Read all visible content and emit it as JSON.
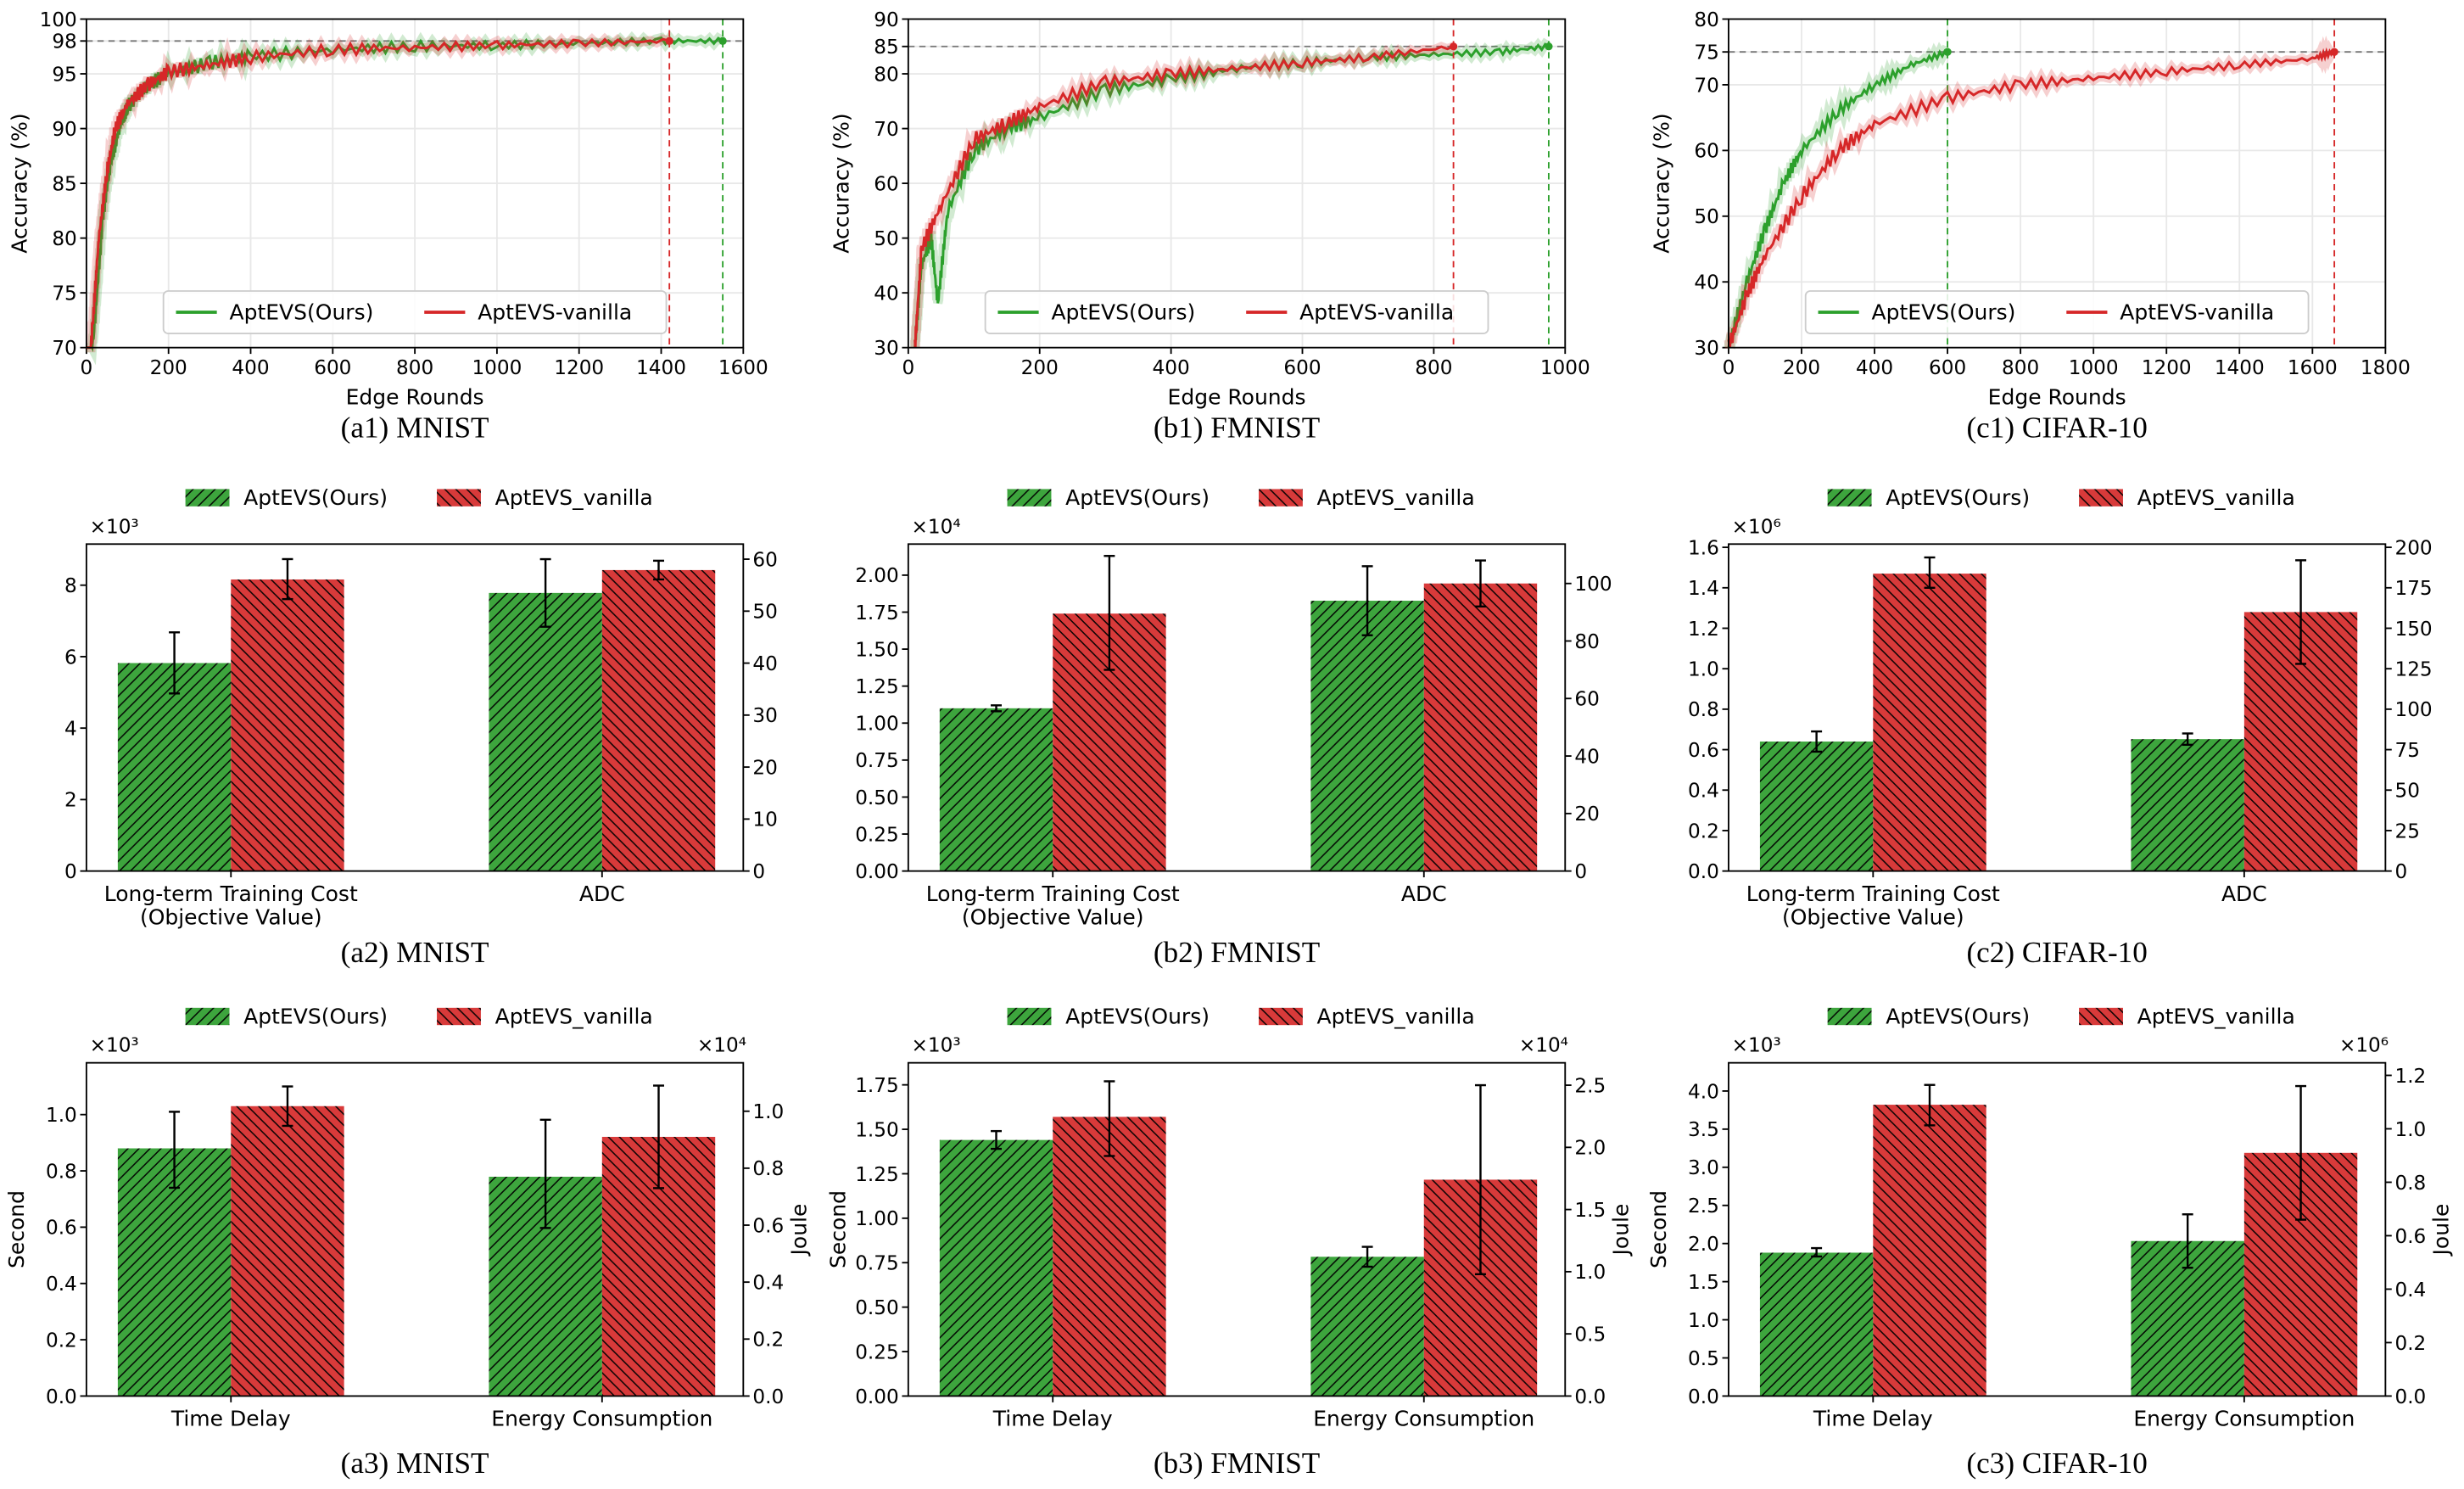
{
  "chart_data": [
    {
      "type": "line",
      "caption": "(a1) MNIST",
      "xlabel": "Edge Rounds",
      "ylabel": "Accuracy (%)",
      "xlim": [
        0,
        1600
      ],
      "ylim": [
        70,
        100
      ],
      "xticks": [
        "0",
        "200",
        "400",
        "600",
        "800",
        "1000",
        "1200",
        "1400",
        "1600"
      ],
      "yticks": [
        "70",
        "75",
        "80",
        "85",
        "90",
        "95",
        "98",
        "100"
      ],
      "target_accuracy": 98,
      "grid": true,
      "legend": "lower center",
      "series": [
        {
          "name": "AptEVS(Ours)",
          "color": "#2ca02c",
          "end_round": 1550,
          "x": [
            0,
            20,
            40,
            60,
            80,
            100,
            150,
            200,
            300,
            400,
            600,
            800,
            1000,
            1200,
            1400,
            1550
          ],
          "y": [
            65,
            72,
            82,
            87,
            90,
            92,
            94,
            95,
            96,
            96.6,
            97.2,
            97.5,
            97.6,
            97.8,
            98,
            98
          ]
        },
        {
          "name": "AptEVS-vanilla",
          "color": "#d62728",
          "end_round": 1420,
          "x": [
            0,
            15,
            30,
            50,
            70,
            100,
            150,
            200,
            300,
            400,
            600,
            800,
            1000,
            1200,
            1420
          ],
          "y": [
            65,
            72,
            80,
            86,
            90,
            92.3,
            94,
            95.2,
            95.8,
            96.5,
            97.2,
            97.4,
            97.6,
            97.8,
            98
          ]
        }
      ]
    },
    {
      "type": "line",
      "caption": "(b1) FMNIST",
      "xlabel": "Edge Rounds",
      "ylabel": "Accuracy (%)",
      "xlim": [
        0,
        1000
      ],
      "ylim": [
        30,
        90
      ],
      "xticks": [
        "0",
        "200",
        "400",
        "600",
        "800",
        "1000"
      ],
      "yticks": [
        "30",
        "40",
        "50",
        "60",
        "70",
        "80",
        "85",
        "90"
      ],
      "target_accuracy": 85,
      "grid": true,
      "legend": "lower center",
      "series": [
        {
          "name": "AptEVS(Ours)",
          "color": "#2ca02c",
          "end_round": 975,
          "x": [
            10,
            20,
            35,
            45,
            60,
            100,
            150,
            200,
            300,
            400,
            500,
            600,
            700,
            800,
            900,
            975
          ],
          "y": [
            30,
            45,
            50,
            38,
            55,
            66,
            70,
            72,
            77,
            79,
            81,
            82,
            83,
            83.5,
            84,
            85
          ]
        },
        {
          "name": "AptEVS-vanilla",
          "color": "#d62728",
          "end_round": 830,
          "x": [
            10,
            20,
            50,
            100,
            150,
            200,
            300,
            400,
            500,
            600,
            700,
            830
          ],
          "y": [
            30,
            48,
            56,
            68,
            71,
            74,
            78.5,
            80,
            81,
            82,
            83,
            85
          ]
        }
      ]
    },
    {
      "type": "line",
      "caption": "(c1) CIFAR-10",
      "xlabel": "Edge Rounds",
      "ylabel": "Accuracy (%)",
      "xlim": [
        0,
        1800
      ],
      "ylim": [
        30,
        80
      ],
      "xticks": [
        "0",
        "200",
        "400",
        "600",
        "800",
        "1000",
        "1200",
        "1400",
        "1600",
        "1800"
      ],
      "yticks": [
        "30",
        "40",
        "50",
        "60",
        "70",
        "75",
        "80"
      ],
      "target_accuracy": 75,
      "grid": true,
      "legend": "lower center",
      "series": [
        {
          "name": "AptEVS(Ours)",
          "color": "#2ca02c",
          "end_round": 600,
          "x": [
            0,
            50,
            100,
            150,
            200,
            300,
            400,
            500,
            600
          ],
          "y": [
            30,
            40,
            48,
            55,
            60,
            66,
            70,
            73,
            75
          ]
        },
        {
          "name": "AptEVS-vanilla",
          "color": "#d62728",
          "end_round": 1660,
          "x": [
            0,
            50,
            100,
            200,
            300,
            400,
            600,
            800,
            1000,
            1200,
            1400,
            1600,
            1660
          ],
          "y": [
            30,
            38,
            44,
            53,
            60,
            64,
            68,
            70,
            71,
            72,
            73,
            74,
            75
          ]
        }
      ]
    },
    {
      "type": "bar",
      "caption": "(a2) MNIST",
      "categories": [
        [
          "Long-term Training Cost",
          "(Objective Value)"
        ],
        [
          "ADC"
        ]
      ],
      "axis_per_category": [
        "left",
        "right"
      ],
      "left_axis": {
        "label": "",
        "multiplier": "×10³",
        "ylim": [
          0,
          9.15
        ],
        "ticks": [
          "0",
          "2",
          "4",
          "6",
          "8"
        ]
      },
      "right_axis": {
        "label": "",
        "multiplier": "",
        "ylim": [
          0,
          62.9
        ],
        "ticks": [
          "0",
          "10",
          "20",
          "30",
          "40",
          "50",
          "60"
        ]
      },
      "series": [
        {
          "name": "AptEVS(Ours)",
          "color": "#2ca02c",
          "hatch": "/",
          "values": [
            5.82,
            53.5
          ],
          "err_low": [
            4.97,
            47
          ],
          "err_high": [
            6.68,
            60
          ]
        },
        {
          "name": "AptEVS_vanilla",
          "color": "#d62728",
          "hatch": "\\",
          "values": [
            8.16,
            57.9
          ],
          "err_low": [
            7.61,
            56.1
          ],
          "err_high": [
            8.73,
            59.7
          ]
        }
      ]
    },
    {
      "type": "bar",
      "caption": "(b2) FMNIST",
      "categories": [
        [
          "Long-term Training Cost",
          "(Objective Value)"
        ],
        [
          "ADC"
        ]
      ],
      "axis_per_category": [
        "left",
        "right"
      ],
      "left_axis": {
        "label": "",
        "multiplier": "×10⁴",
        "ylim": [
          0,
          2.21
        ],
        "ticks": [
          "0.00",
          "0.25",
          "0.50",
          "0.75",
          "1.00",
          "1.25",
          "1.50",
          "1.75",
          "2.00"
        ]
      },
      "right_axis": {
        "label": "",
        "multiplier": "",
        "ylim": [
          0,
          113.7
        ],
        "ticks": [
          "0",
          "20",
          "40",
          "60",
          "80",
          "100"
        ]
      },
      "series": [
        {
          "name": "AptEVS(Ours)",
          "color": "#2ca02c",
          "hatch": "/",
          "values": [
            1.1,
            94
          ],
          "err_low": [
            1.08,
            82
          ],
          "err_high": [
            1.12,
            106
          ]
        },
        {
          "name": "AptEVS_vanilla",
          "color": "#d62728",
          "hatch": "\\",
          "values": [
            1.74,
            100
          ],
          "err_low": [
            1.36,
            92
          ],
          "err_high": [
            2.13,
            108
          ]
        }
      ]
    },
    {
      "type": "bar",
      "caption": "(c2) CIFAR-10",
      "categories": [
        [
          "Long-term Training Cost",
          "(Objective Value)"
        ],
        [
          "ADC"
        ]
      ],
      "axis_per_category": [
        "left",
        "right"
      ],
      "left_axis": {
        "label": "",
        "multiplier": "×10⁶",
        "ylim": [
          0,
          1.616
        ],
        "ticks": [
          "0.0",
          "0.2",
          "0.4",
          "0.6",
          "0.8",
          "1.0",
          "1.2",
          "1.4",
          "1.6"
        ]
      },
      "right_axis": {
        "label": "",
        "multiplier": "",
        "ylim": [
          0,
          202
        ],
        "ticks": [
          "0",
          "25",
          "50",
          "75",
          "100",
          "125",
          "150",
          "175",
          "200"
        ]
      },
      "series": [
        {
          "name": "AptEVS(Ours)",
          "color": "#2ca02c",
          "hatch": "/",
          "values": [
            0.64,
            81.5
          ],
          "err_low": [
            0.59,
            78
          ],
          "err_high": [
            0.69,
            85
          ]
        },
        {
          "name": "AptEVS_vanilla",
          "color": "#d62728",
          "hatch": "\\",
          "values": [
            1.47,
            160
          ],
          "err_low": [
            1.4,
            128
          ],
          "err_high": [
            1.55,
            192
          ]
        }
      ]
    },
    {
      "type": "bar",
      "caption": "(a3) MNIST",
      "categories": [
        [
          "Time Delay"
        ],
        [
          "Energy Consumption"
        ]
      ],
      "axis_per_category": [
        "left",
        "right"
      ],
      "left_axis": {
        "label": "Second",
        "multiplier": "×10³",
        "ylim": [
          0,
          1.184
        ],
        "ticks": [
          "0.0",
          "0.2",
          "0.4",
          "0.6",
          "0.8",
          "1.0"
        ]
      },
      "right_axis": {
        "label": "Joule",
        "multiplier": "×10⁴",
        "ylim": [
          0,
          1.17
        ],
        "ticks": [
          "0.0",
          "0.2",
          "0.4",
          "0.6",
          "0.8",
          "1.0"
        ]
      },
      "series": [
        {
          "name": "AptEVS(Ours)",
          "color": "#2ca02c",
          "hatch": "/",
          "values": [
            0.88,
            0.77
          ],
          "err_low": [
            0.74,
            0.59
          ],
          "err_high": [
            1.01,
            0.97
          ]
        },
        {
          "name": "AptEVS_vanilla",
          "color": "#d62728",
          "hatch": "\\",
          "values": [
            1.03,
            0.91
          ],
          "err_low": [
            0.96,
            0.73
          ],
          "err_high": [
            1.1,
            1.09
          ]
        }
      ]
    },
    {
      "type": "bar",
      "caption": "(b3) FMNIST",
      "categories": [
        [
          "Time Delay"
        ],
        [
          "Energy Consumption"
        ]
      ],
      "axis_per_category": [
        "left",
        "right"
      ],
      "left_axis": {
        "label": "Second",
        "multiplier": "×10³",
        "ylim": [
          0,
          1.874
        ],
        "ticks": [
          "0.00",
          "0.25",
          "0.50",
          "0.75",
          "1.00",
          "1.25",
          "1.50",
          "1.75"
        ]
      },
      "right_axis": {
        "label": "Joule",
        "multiplier": "×10⁴",
        "ylim": [
          0,
          2.68
        ],
        "ticks": [
          "0.0",
          "0.5",
          "1.0",
          "1.5",
          "2.0",
          "2.5"
        ]
      },
      "series": [
        {
          "name": "AptEVS(Ours)",
          "color": "#2ca02c",
          "hatch": "/",
          "values": [
            1.44,
            1.12
          ],
          "err_low": [
            1.39,
            1.04
          ],
          "err_high": [
            1.49,
            1.2
          ]
        },
        {
          "name": "AptEVS_vanilla",
          "color": "#d62728",
          "hatch": "\\",
          "values": [
            1.57,
            1.74
          ],
          "err_low": [
            1.35,
            0.98
          ],
          "err_high": [
            1.77,
            2.5
          ]
        }
      ]
    },
    {
      "type": "bar",
      "caption": "(c3) CIFAR-10",
      "categories": [
        [
          "Time Delay"
        ],
        [
          "Energy Consumption"
        ]
      ],
      "axis_per_category": [
        "left",
        "right"
      ],
      "left_axis": {
        "label": "Second",
        "multiplier": "×10³",
        "ylim": [
          0,
          4.37
        ],
        "ticks": [
          "0.0",
          "0.5",
          "1.0",
          "1.5",
          "2.0",
          "2.5",
          "3.0",
          "3.5",
          "4.0"
        ]
      },
      "right_axis": {
        "label": "Joule",
        "multiplier": "×10⁶",
        "ylim": [
          0,
          1.247
        ],
        "ticks": [
          "0.0",
          "0.2",
          "0.4",
          "0.6",
          "0.8",
          "1.0",
          "1.2"
        ]
      },
      "series": [
        {
          "name": "AptEVS(Ours)",
          "color": "#2ca02c",
          "hatch": "/",
          "values": [
            1.88,
            0.58
          ],
          "err_low": [
            1.83,
            0.48
          ],
          "err_high": [
            1.94,
            0.68
          ]
        },
        {
          "name": "AptEVS_vanilla",
          "color": "#d62728",
          "hatch": "\\",
          "values": [
            3.82,
            0.91
          ],
          "err_low": [
            3.55,
            0.66
          ],
          "err_high": [
            4.08,
            1.16
          ]
        }
      ]
    }
  ]
}
